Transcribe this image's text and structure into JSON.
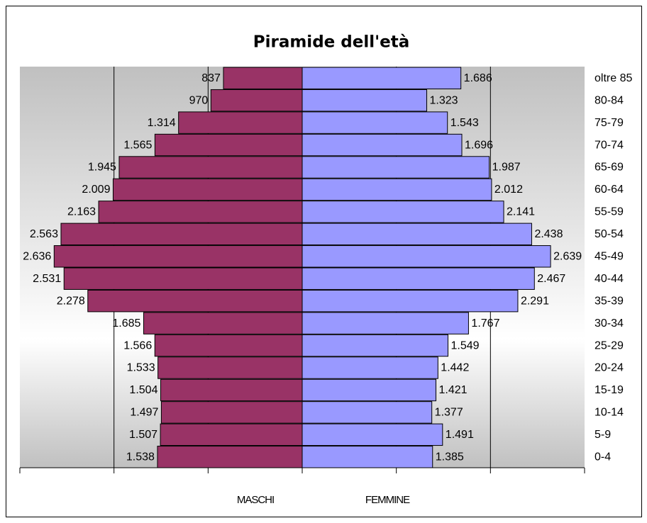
{
  "chart_data": {
    "type": "pyramid",
    "title": "Piramide dell'età",
    "categories": [
      "oltre 85",
      "80-84",
      "75-79",
      "70-74",
      "65-69",
      "60-64",
      "55-59",
      "50-54",
      "45-49",
      "40-44",
      "35-39",
      "30-34",
      "25-29",
      "20-24",
      "15-19",
      "10-14",
      "5-9",
      "0-4"
    ],
    "series": [
      {
        "name": "MASCHI",
        "color": "#993366",
        "side": "left",
        "values": [
          837,
          970,
          1314,
          1565,
          1945,
          2009,
          2163,
          2563,
          2636,
          2531,
          2278,
          1685,
          1566,
          1533,
          1504,
          1497,
          1507,
          1538
        ],
        "value_labels": [
          "837",
          "970",
          "1.314",
          "1.565",
          "1.945",
          "2.009",
          "2.163",
          "2.563",
          "2.636",
          "2.531",
          "2.278",
          "1.685",
          "1.566",
          "1.533",
          "1.504",
          "1.497",
          "1.507",
          "1.538"
        ]
      },
      {
        "name": "FEMMINE",
        "color": "#9999ff",
        "side": "right",
        "values": [
          1686,
          1323,
          1543,
          1696,
          1987,
          2012,
          2141,
          2438,
          2639,
          2467,
          2291,
          1767,
          1549,
          1442,
          1421,
          1377,
          1491,
          1385
        ],
        "value_labels": [
          "1.686",
          "1.323",
          "1.543",
          "1.696",
          "1.987",
          "2.012",
          "2.141",
          "2.438",
          "2.639",
          "2.467",
          "2.291",
          "1.767",
          "1.549",
          "1.442",
          "1.421",
          "1.377",
          "1.491",
          "1.385"
        ]
      }
    ],
    "xlim": [
      0,
      3000
    ],
    "xticks": [
      0,
      1000,
      2000,
      3000
    ],
    "grid": true
  }
}
